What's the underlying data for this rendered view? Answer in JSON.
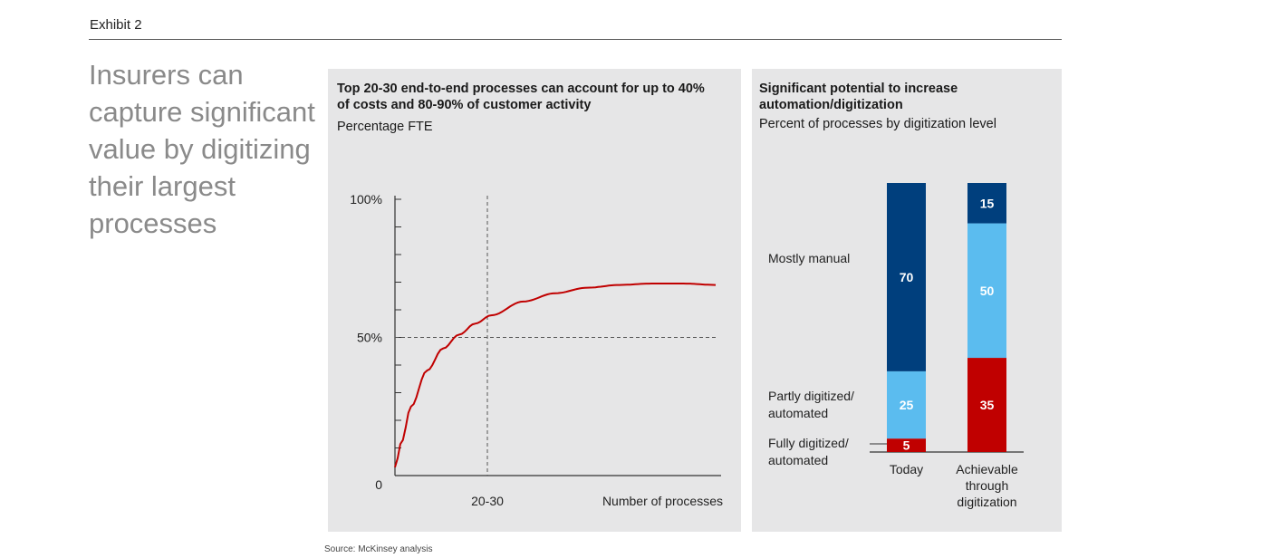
{
  "exhibit": "Exhibit 2",
  "headline": "Insurers can capture significant value by digitizing their largest processes",
  "left_panel": {
    "title_line1": "Top 20-30 end-to-end processes can account for up to 40%",
    "title_line2": "of costs and 80-90% of customer activity",
    "subtitle": "Percentage FTE"
  },
  "right_panel": {
    "title_line1": "Significant potential to increase",
    "title_line2": "automation/digitization",
    "subtitle": "Percent of processes by digitization level"
  },
  "source": "Source: McKinsey analysis",
  "colors": {
    "curve": "#c00000",
    "mostly_manual": "#003f7d",
    "partly_digitized": "#5bbcef",
    "fully_digitized": "#c00000"
  },
  "chart_data": [
    {
      "type": "line",
      "title": "Top 20-30 end-to-end processes can account for up to 40% of costs and 80-90% of customer activity",
      "ylabel": "Percentage FTE",
      "xlabel": "Number of processes",
      "y_tick_labels": [
        "0",
        "50%",
        "100%"
      ],
      "x_tick_labels": [
        "20-30"
      ],
      "ylim": [
        0,
        100
      ],
      "series": [
        {
          "x": [
            0,
            2,
            5,
            10,
            15,
            20,
            25,
            30,
            40,
            50,
            60,
            70,
            80,
            90,
            100
          ],
          "values": [
            3,
            12,
            25,
            38,
            46,
            51,
            55,
            58,
            63,
            66,
            68,
            69,
            69.5,
            69.5,
            69
          ]
        }
      ],
      "reference_lines": {
        "y": 50,
        "x_label": "20-30"
      }
    },
    {
      "type": "bar",
      "stacked": true,
      "title": "Significant potential to increase automation/digitization",
      "subtitle": "Percent of processes by digitization level",
      "categories": [
        "Today",
        "Achievable through digitization"
      ],
      "series": [
        {
          "name": "Fully digitized/ automated",
          "values": [
            5,
            35
          ]
        },
        {
          "name": "Partly digitized/ automated",
          "values": [
            25,
            50
          ]
        },
        {
          "name": "Mostly manual",
          "values": [
            70,
            15
          ]
        }
      ],
      "ylim": [
        0,
        100
      ]
    }
  ]
}
